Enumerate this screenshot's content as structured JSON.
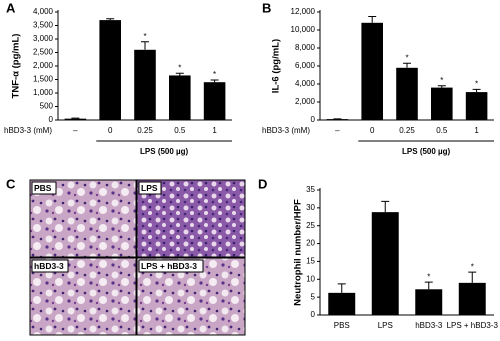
{
  "panels": [
    "A",
    "B",
    "C",
    "D"
  ],
  "histology": {
    "labels": [
      "PBS",
      "LPS",
      "hBD3-3",
      "LPS + hBD3-3"
    ]
  },
  "chart_data": [
    {
      "type": "bar",
      "ylabel": "TNF-α (pg/mL)",
      "x_row_label": "hBD3-3 (mM)",
      "group_label": "LPS (500 µg)",
      "categories": [
        "–",
        "0",
        "0.25",
        "0.5",
        "1"
      ],
      "values": [
        50,
        3700,
        2600,
        1650,
        1400
      ],
      "errors": [
        20,
        50,
        300,
        80,
        80
      ],
      "significance": [
        null,
        null,
        "*",
        "*",
        "*"
      ],
      "color": "#000000",
      "ylim": [
        0,
        4000
      ],
      "yticks": [
        0,
        500,
        {
          "value": 1000,
          "label": "1,000"
        },
        {
          "value": 1500,
          "label": "1,500"
        },
        {
          "value": 2000,
          "label": "2,000"
        },
        {
          "value": 2500,
          "label": "2,500"
        },
        {
          "value": 3000,
          "label": "3,000"
        },
        {
          "value": 3500,
          "label": "3,500"
        },
        {
          "value": 4000,
          "label": "4,000"
        }
      ]
    },
    {
      "type": "bar",
      "ylabel": "IL-6 (pg/mL)",
      "x_row_label": "hBD3-3 (mM)",
      "group_label": "LPS (500 µg)",
      "categories": [
        "–",
        "0",
        "0.25",
        "0.5",
        "1"
      ],
      "values": [
        100,
        10800,
        5800,
        3600,
        3100
      ],
      "errors": [
        30,
        700,
        500,
        200,
        300
      ],
      "significance": [
        null,
        null,
        "*",
        "*",
        "*"
      ],
      "color": "#000000",
      "ylim": [
        0,
        12000
      ],
      "yticks": [
        0,
        {
          "value": 2000,
          "label": "2,000"
        },
        {
          "value": 4000,
          "label": "4,000"
        },
        {
          "value": 6000,
          "label": "6,000"
        },
        {
          "value": 8000,
          "label": "8,000"
        },
        {
          "value": 10000,
          "label": "10,000"
        },
        {
          "value": 12000,
          "label": "12,000"
        }
      ]
    },
    {
      "type": "bar",
      "ylabel": "Neutrophil number/HPF",
      "categories": [
        "PBS",
        "LPS",
        "hBD3-3",
        "LPS + hBD3-3"
      ],
      "values": [
        6.2,
        28.8,
        7.2,
        9
      ],
      "errors": [
        2.5,
        3,
        2,
        3
      ],
      "significance": [
        null,
        null,
        "*",
        "*"
      ],
      "color": "#000000",
      "ylim": [
        0,
        35
      ],
      "yticks": [
        0,
        5,
        10,
        15,
        20,
        25,
        30,
        35
      ]
    }
  ]
}
